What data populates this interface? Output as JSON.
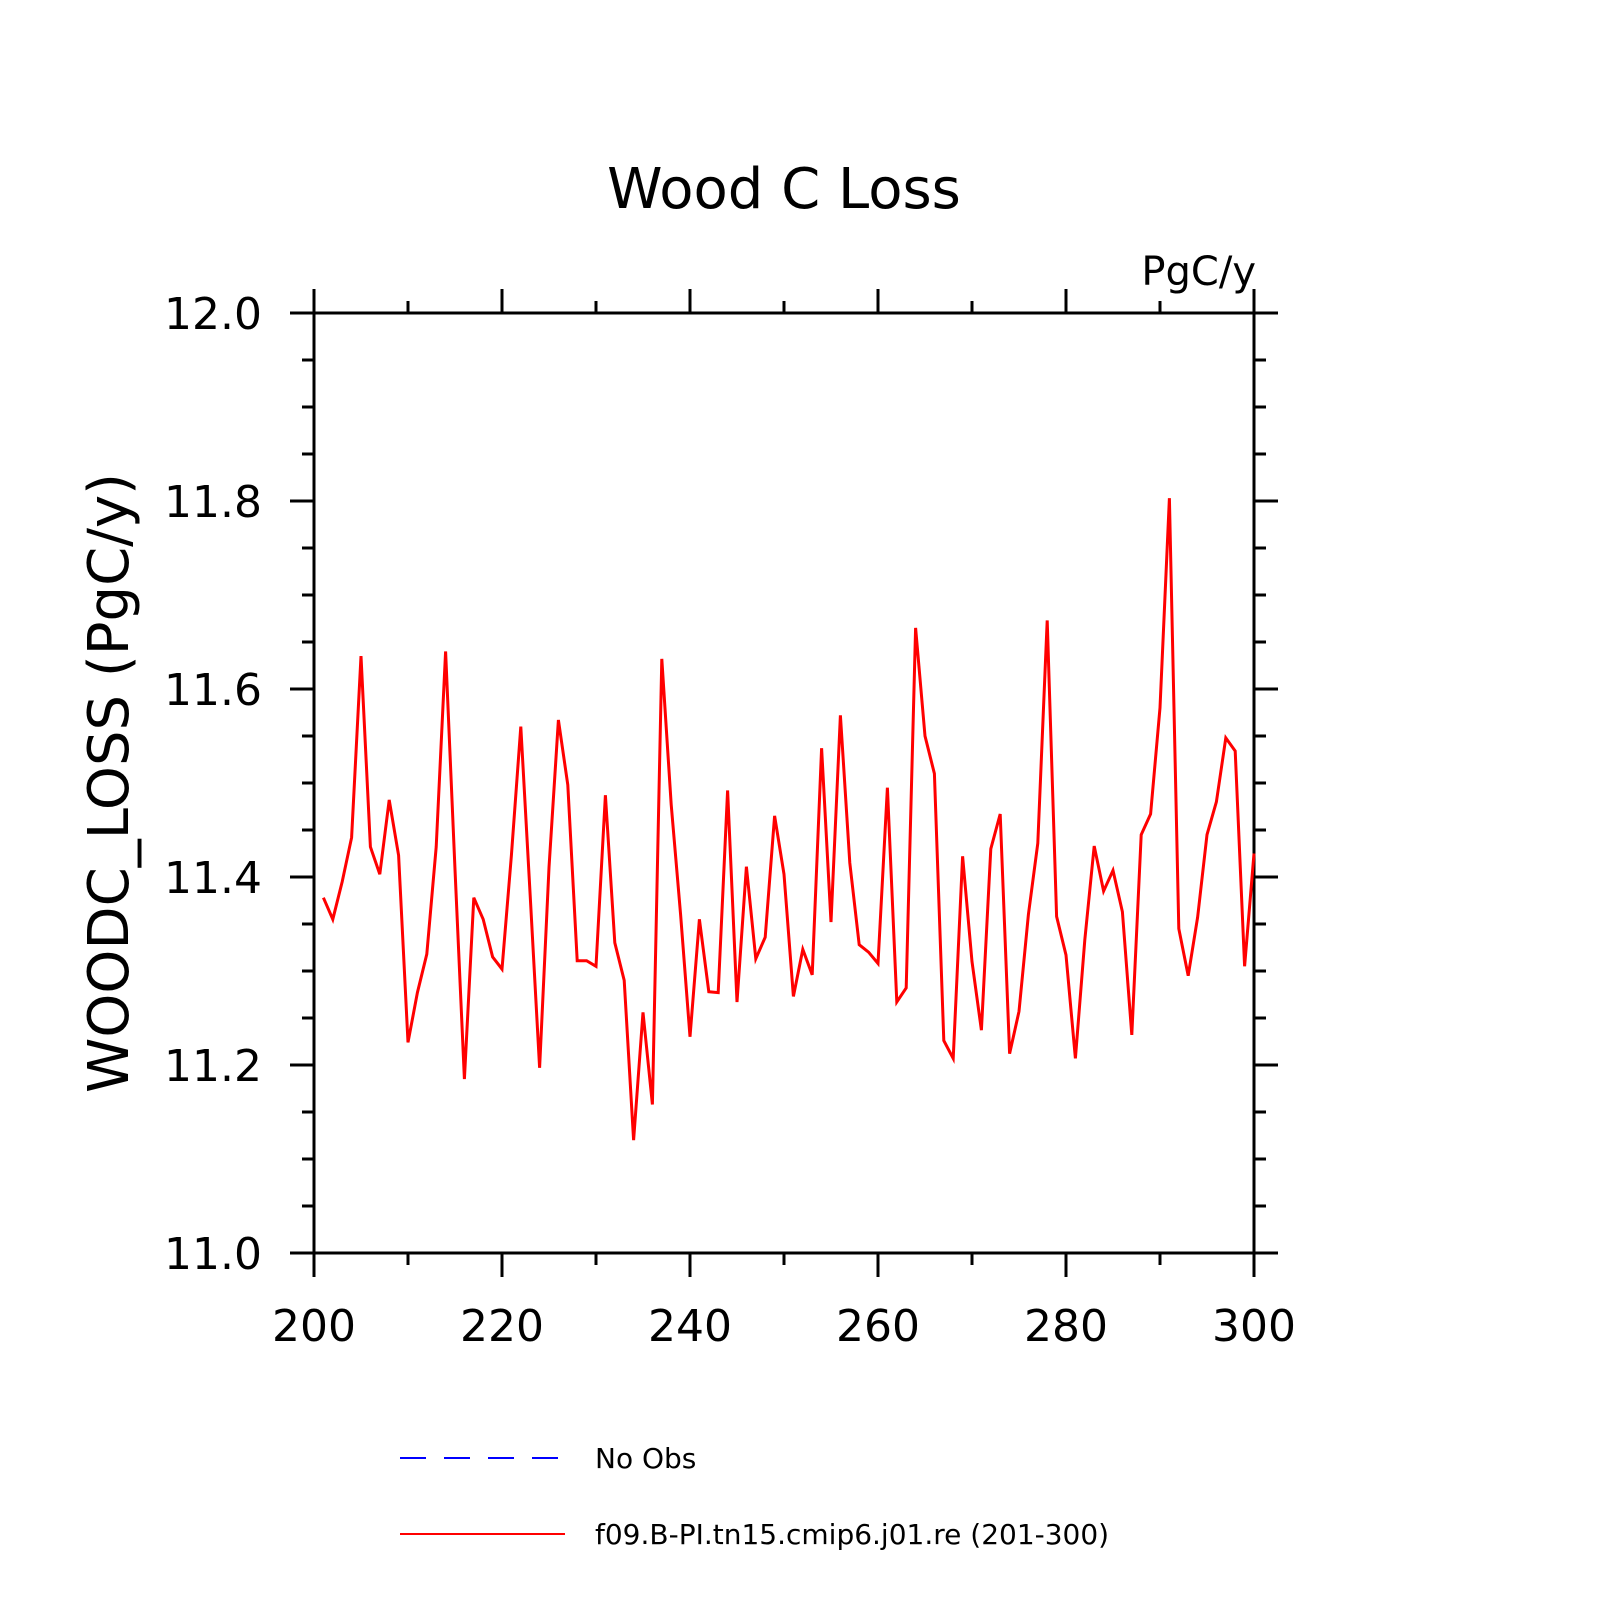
{
  "chart_data": {
    "type": "line",
    "title": "Wood C Loss",
    "units_label": "PgC/y",
    "xlabel": "",
    "ylabel": "WOODC_LOSS  (PgC/y)",
    "xlim": [
      200,
      300
    ],
    "ylim": [
      11.0,
      12.0
    ],
    "x_ticks": [
      "200",
      "220",
      "240",
      "260",
      "280",
      "300"
    ],
    "y_ticks": [
      "11.0",
      "11.2",
      "11.4",
      "11.6",
      "11.8",
      "12.0"
    ],
    "grid": false,
    "legend_position": "bottom",
    "legend": [
      {
        "label": "No Obs",
        "color": "#0000ff",
        "dash": true
      },
      {
        "label": "f09.B-PI.tn15.cmip6.j01.re (201-300)",
        "color": "#ff0000",
        "dash": false
      }
    ],
    "series": [
      {
        "name": "f09.B-PI.tn15.cmip6.j01.re (201-300)",
        "color": "#ff0000",
        "x": [
          201,
          202,
          203,
          204,
          205,
          206,
          207,
          208,
          209,
          210,
          211,
          212,
          213,
          214,
          215,
          216,
          217,
          218,
          219,
          220,
          221,
          222,
          223,
          224,
          225,
          226,
          227,
          228,
          229,
          230,
          231,
          232,
          233,
          234,
          235,
          236,
          237,
          238,
          239,
          240,
          241,
          242,
          243,
          244,
          245,
          246,
          247,
          248,
          249,
          250,
          251,
          252,
          253,
          254,
          255,
          256,
          257,
          258,
          259,
          260,
          261,
          262,
          263,
          264,
          265,
          266,
          267,
          268,
          269,
          270,
          271,
          272,
          273,
          274,
          275,
          276,
          277,
          278,
          279,
          280,
          281,
          282,
          283,
          284,
          285,
          286,
          287,
          288,
          289,
          290,
          291,
          292,
          293,
          294,
          295,
          296,
          297,
          298,
          299,
          300
        ],
        "values": [
          11.378,
          11.355,
          11.395,
          11.442,
          11.635,
          11.432,
          11.403,
          11.482,
          11.423,
          11.224,
          11.277,
          11.318,
          11.432,
          11.64,
          11.408,
          11.185,
          11.378,
          11.355,
          11.315,
          11.302,
          11.423,
          11.56,
          11.38,
          11.197,
          11.41,
          11.567,
          11.498,
          11.311,
          11.311,
          11.305,
          11.487,
          11.33,
          11.29,
          11.12,
          11.256,
          11.158,
          11.632,
          11.477,
          11.36,
          11.23,
          11.355,
          11.278,
          11.277,
          11.492,
          11.267,
          11.411,
          11.313,
          11.336,
          11.465,
          11.403,
          11.273,
          11.323,
          11.296,
          11.537,
          11.352,
          11.572,
          11.415,
          11.328,
          11.32,
          11.308,
          11.495,
          11.267,
          11.282,
          11.665,
          11.55,
          11.51,
          11.226,
          11.207,
          11.422,
          11.31,
          11.237,
          11.43,
          11.467,
          11.212,
          11.257,
          11.36,
          11.436,
          11.673,
          11.358,
          11.317,
          11.207,
          11.333,
          11.433,
          11.385,
          11.407,
          11.363,
          11.232,
          11.445,
          11.467,
          11.58,
          11.803,
          11.345,
          11.295,
          11.357,
          11.445,
          11.48,
          11.548,
          11.534,
          11.305,
          11.425
        ]
      }
    ]
  }
}
